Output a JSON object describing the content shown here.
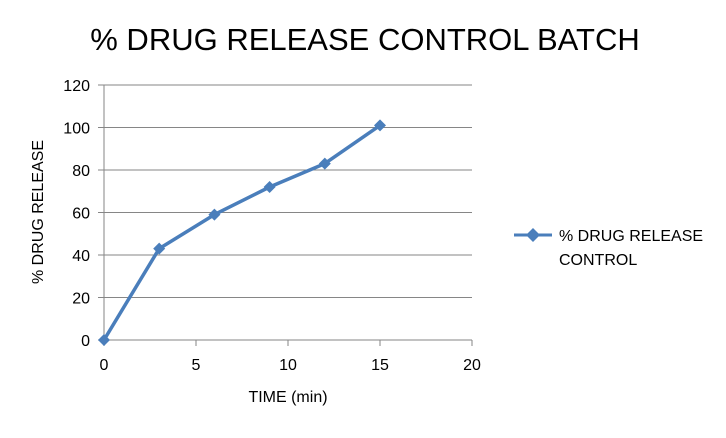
{
  "chart_data": {
    "type": "line",
    "title": "% DRUG RELEASE CONTROL BATCH",
    "xlabel": "TIME (min)",
    "ylabel": "% DRUG RELEASE",
    "xlim": [
      0,
      20
    ],
    "ylim": [
      0,
      120
    ],
    "xticks": [
      0,
      5,
      10,
      15,
      20
    ],
    "yticks": [
      0,
      20,
      40,
      60,
      80,
      100,
      120
    ],
    "grid": "horizontal",
    "legend_position": "right",
    "series": [
      {
        "name_lines": [
          "% DRUG RELEASE",
          "CONTROL"
        ],
        "color": "#4a7ebb",
        "marker": "diamond",
        "x": [
          0,
          3,
          6,
          9,
          12,
          15
        ],
        "y": [
          0,
          43,
          59,
          72,
          83,
          101
        ]
      }
    ]
  }
}
